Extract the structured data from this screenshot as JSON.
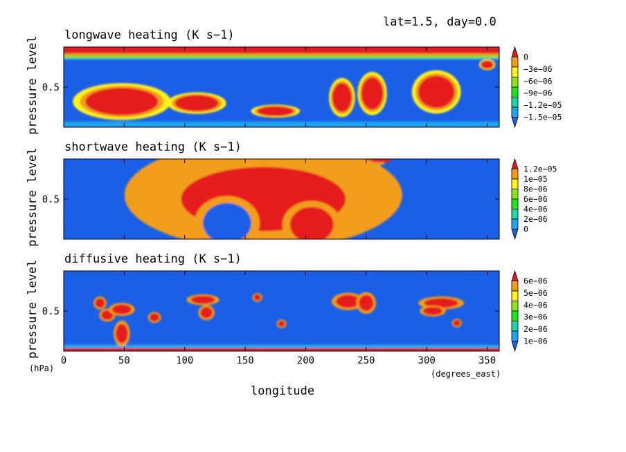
{
  "header": {
    "info": "lat=1.5, day=0.0"
  },
  "chart_data": [
    {
      "type": "heatmap",
      "title": "longwave heating (K s−1)",
      "ylabel": "pressure level",
      "y_ticks": [
        {
          "value": 0.5,
          "label": "0.5"
        }
      ],
      "ylim": [
        1,
        0
      ],
      "xlim": [
        0,
        360
      ],
      "colorbar": {
        "labels": [
          "0",
          "−3e−06",
          "−6e−06",
          "−9e−06",
          "−1.2e−05",
          "−1.5e−05"
        ],
        "colors": [
          "#e61a1a",
          "#f29d1a",
          "#fff21a",
          "#8ce61a",
          "#1ae61a",
          "#1ad9a6",
          "#1aa6f2",
          "#1a5fe6"
        ]
      },
      "background": "#1a5fe6",
      "features": [
        {
          "kind": "band",
          "y0": 0.0,
          "y1": 0.08,
          "x0": 0,
          "x1": 360,
          "color": "#e61a1a"
        },
        {
          "kind": "band",
          "y0": 0.08,
          "y1": 0.11,
          "x0": 0,
          "x1": 360,
          "color": "#f29d1a"
        },
        {
          "kind": "band",
          "y0": 0.11,
          "y1": 0.14,
          "x0": 0,
          "x1": 360,
          "color": "#8ce61a"
        },
        {
          "kind": "band",
          "y0": 0.14,
          "y1": 0.16,
          "x0": 0,
          "x1": 360,
          "color": "#1aa6f2"
        },
        {
          "kind": "band",
          "y0": 0.93,
          "y1": 1.0,
          "x0": 0,
          "x1": 360,
          "color": "#1aa6f2"
        },
        {
          "kind": "blob",
          "x": 48,
          "y": 0.68,
          "rx": 30,
          "ry": 0.17,
          "color": "#e61a1a"
        },
        {
          "kind": "blob",
          "x": 110,
          "y": 0.7,
          "rx": 18,
          "ry": 0.1,
          "color": "#e61a1a"
        },
        {
          "kind": "blob",
          "x": 175,
          "y": 0.8,
          "rx": 15,
          "ry": 0.06,
          "color": "#e61a1a"
        },
        {
          "kind": "blob",
          "x": 230,
          "y": 0.63,
          "rx": 8,
          "ry": 0.18,
          "color": "#e61a1a"
        },
        {
          "kind": "blob",
          "x": 255,
          "y": 0.58,
          "rx": 9,
          "ry": 0.2,
          "color": "#e61a1a"
        },
        {
          "kind": "blob",
          "x": 308,
          "y": 0.56,
          "rx": 15,
          "ry": 0.2,
          "color": "#e61a1a"
        },
        {
          "kind": "blob",
          "x": 350,
          "y": 0.22,
          "rx": 5,
          "ry": 0.05,
          "color": "#e61a1a"
        }
      ]
    },
    {
      "type": "heatmap",
      "title": "shortwave heating (K s−1)",
      "ylabel": "pressure level",
      "y_ticks": [
        {
          "value": 0.5,
          "label": "0.5"
        }
      ],
      "ylim": [
        1,
        0
      ],
      "xlim": [
        0,
        360
      ],
      "colorbar": {
        "labels": [
          "1.2e−05",
          "1e−05",
          "8e−06",
          "6e−06",
          "4e−06",
          "2e−06",
          "0"
        ],
        "colors": [
          "#e61a1a",
          "#f29d1a",
          "#fff21a",
          "#8ce61a",
          "#1ae61a",
          "#1ad9a6",
          "#1aa6f2",
          "#1a5fe6"
        ]
      },
      "background": "#1a5fe6",
      "features": [
        {
          "kind": "band",
          "y0": 0.0,
          "y1": 0.04,
          "x0": 80,
          "x1": 270,
          "color": "#e61a1a"
        },
        {
          "kind": "band",
          "y0": 0.04,
          "y1": 0.07,
          "x0": 85,
          "x1": 265,
          "color": "#f29d1a"
        },
        {
          "kind": "band",
          "y0": 0.07,
          "y1": 0.1,
          "x0": 90,
          "x1": 262,
          "color": "#1ad9a6"
        },
        {
          "kind": "blob",
          "x": 165,
          "y": 0.45,
          "rx": 85,
          "ry": 0.5,
          "color": "#1aa6f2"
        },
        {
          "kind": "blob",
          "x": 165,
          "y": 0.45,
          "rx": 75,
          "ry": 0.4,
          "color": "#8ce61a"
        },
        {
          "kind": "blob",
          "x": 165,
          "y": 0.5,
          "rx": 68,
          "ry": 0.4,
          "color": "#e61a1a"
        },
        {
          "kind": "blob",
          "x": 135,
          "y": 0.8,
          "rx": 20,
          "ry": 0.25,
          "color": "#1a5fe6"
        },
        {
          "kind": "blob",
          "x": 205,
          "y": 0.82,
          "rx": 18,
          "ry": 0.22,
          "color": "#e61a1a"
        }
      ]
    },
    {
      "type": "heatmap",
      "title": "diffusive heating (K s−1)",
      "ylabel": "pressure level",
      "y_ticks": [
        {
          "value": 0.5,
          "label": "0.5"
        }
      ],
      "ylim": [
        1,
        0
      ],
      "xlim": [
        0,
        360
      ],
      "xlabel": "longitude",
      "x_ticks": [
        0,
        50,
        100,
        150,
        200,
        250,
        300,
        350
      ],
      "colorbar": {
        "labels": [
          "6e−06",
          "5e−06",
          "4e−06",
          "3e−06",
          "2e−06",
          "1e−06"
        ],
        "colors": [
          "#e61a1a",
          "#f29d1a",
          "#fff21a",
          "#8ce61a",
          "#1ae61a",
          "#1ad9a6",
          "#1aa6f2",
          "#1a5fe6"
        ]
      },
      "background": "#1a5fe6",
      "features": [
        {
          "kind": "band",
          "y0": 0.96,
          "y1": 1.0,
          "x0": 0,
          "x1": 360,
          "color": "#e61a1a"
        },
        {
          "kind": "band",
          "y0": 0.92,
          "y1": 0.96,
          "x0": 0,
          "x1": 360,
          "color": "#1aa6f2"
        },
        {
          "kind": "blob",
          "x": 30,
          "y": 0.4,
          "rx": 4,
          "ry": 0.06,
          "color": "#e61a1a"
        },
        {
          "kind": "blob",
          "x": 36,
          "y": 0.55,
          "rx": 5,
          "ry": 0.06,
          "color": "#e61a1a"
        },
        {
          "kind": "blob",
          "x": 48,
          "y": 0.48,
          "rx": 8,
          "ry": 0.06,
          "color": "#e61a1a"
        },
        {
          "kind": "blob",
          "x": 48,
          "y": 0.78,
          "rx": 5,
          "ry": 0.12,
          "color": "#e61a1a"
        },
        {
          "kind": "blob",
          "x": 75,
          "y": 0.58,
          "rx": 4,
          "ry": 0.05,
          "color": "#e61a1a"
        },
        {
          "kind": "blob",
          "x": 115,
          "y": 0.36,
          "rx": 10,
          "ry": 0.05,
          "color": "#e61a1a"
        },
        {
          "kind": "blob",
          "x": 118,
          "y": 0.52,
          "rx": 5,
          "ry": 0.07,
          "color": "#e61a1a"
        },
        {
          "kind": "blob",
          "x": 160,
          "y": 0.33,
          "rx": 3,
          "ry": 0.04,
          "color": "#e61a1a"
        },
        {
          "kind": "blob",
          "x": 180,
          "y": 0.66,
          "rx": 3,
          "ry": 0.04,
          "color": "#e61a1a"
        },
        {
          "kind": "blob",
          "x": 235,
          "y": 0.38,
          "rx": 10,
          "ry": 0.08,
          "color": "#e61a1a"
        },
        {
          "kind": "blob",
          "x": 250,
          "y": 0.4,
          "rx": 6,
          "ry": 0.1,
          "color": "#e61a1a"
        },
        {
          "kind": "blob",
          "x": 312,
          "y": 0.4,
          "rx": 14,
          "ry": 0.06,
          "color": "#e61a1a"
        },
        {
          "kind": "blob",
          "x": 305,
          "y": 0.5,
          "rx": 8,
          "ry": 0.05,
          "color": "#e61a1a"
        },
        {
          "kind": "blob",
          "x": 325,
          "y": 0.65,
          "rx": 3,
          "ry": 0.04,
          "color": "#e61a1a"
        }
      ]
    }
  ],
  "x_axis": {
    "unit_left": "(hPa)",
    "unit_right": "(degrees_east)",
    "label": "longitude",
    "ticks": [
      0,
      50,
      100,
      150,
      200,
      250,
      300,
      350
    ],
    "xlim": [
      0,
      360
    ]
  }
}
